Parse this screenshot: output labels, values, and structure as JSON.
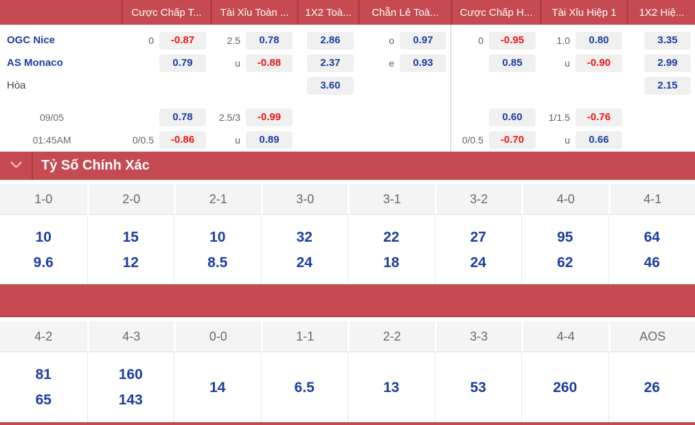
{
  "colors": {
    "accent_red": "#c54a51",
    "header_divider_red": "#b23c44",
    "odds_positive_blue": "#1c3ca0",
    "odds_negative_red": "#ed1515",
    "pill_background": "#f0f0f1",
    "score_header_background": "#f4f4f5"
  },
  "match": {
    "home": "OGC Nice",
    "away": "AS Monaco",
    "draw_label": "Hòa",
    "date": "09/05",
    "time": "01:45AM"
  },
  "odds": {
    "columns": [
      "Cược Chấp T...",
      "Tài Xỉu Toàn ...",
      "1X2 Toà...",
      "Chẵn Lẻ Toà...",
      "Cược Chấp H...",
      "Tài Xỉu Hiệp 1",
      "1X2 Hiệ..."
    ],
    "rows": [
      {
        "label": "OGC Nice",
        "type": "team",
        "cells": [
          {
            "handicap": "0",
            "value": "-0.87",
            "negative": true
          },
          {
            "handicap": "2.5",
            "value": "0.78",
            "negative": false
          },
          {
            "value": "2.86",
            "negative": false
          },
          {
            "handicap": "o",
            "value": "0.97",
            "negative": false
          },
          {
            "handicap": "0",
            "value": "-0.95",
            "negative": true
          },
          {
            "handicap": "1.0",
            "value": "0.80",
            "negative": false
          },
          {
            "value": "3.35",
            "negative": false
          }
        ]
      },
      {
        "label": "AS Monaco",
        "type": "team",
        "cells": [
          {
            "value": "0.79",
            "negative": false
          },
          {
            "handicap": "u",
            "value": "-0.88",
            "negative": true
          },
          {
            "value": "2.37",
            "negative": false
          },
          {
            "handicap": "e",
            "value": "0.93",
            "negative": false
          },
          {
            "value": "0.85",
            "negative": false
          },
          {
            "handicap": "u",
            "value": "-0.90",
            "negative": true
          },
          {
            "value": "2.99",
            "negative": false
          }
        ]
      },
      {
        "label": "Hòa",
        "type": "draw",
        "cells": [
          null,
          null,
          {
            "value": "3.60",
            "negative": false
          },
          null,
          null,
          null,
          {
            "value": "2.15",
            "negative": false
          }
        ]
      },
      {
        "label": "09/05",
        "type": "date1",
        "cells": [
          {
            "value": "0.78",
            "negative": false
          },
          {
            "handicap": "2.5/3",
            "value": "-0.99",
            "negative": true
          },
          null,
          null,
          {
            "value": "0.60",
            "negative": false
          },
          {
            "handicap": "1/1.5",
            "value": "-0.76",
            "negative": true
          },
          null
        ]
      },
      {
        "label": "01:45AM",
        "type": "date2",
        "cells": [
          {
            "handicap": "0/0.5",
            "value": "-0.86",
            "negative": true
          },
          {
            "handicap": "u",
            "value": "0.89",
            "negative": false
          },
          null,
          null,
          {
            "handicap": "0/0.5",
            "value": "-0.70",
            "negative": true
          },
          {
            "handicap": "u",
            "value": "0.66",
            "negative": false
          },
          null
        ]
      }
    ]
  },
  "correct_score": {
    "title": "Tỷ Số Chính Xác",
    "grid1": [
      {
        "score": "1-0",
        "odds": [
          "10",
          "9.6"
        ]
      },
      {
        "score": "2-0",
        "odds": [
          "15",
          "12"
        ]
      },
      {
        "score": "2-1",
        "odds": [
          "10",
          "8.5"
        ]
      },
      {
        "score": "3-0",
        "odds": [
          "32",
          "24"
        ]
      },
      {
        "score": "3-1",
        "odds": [
          "22",
          "18"
        ]
      },
      {
        "score": "3-2",
        "odds": [
          "27",
          "24"
        ]
      },
      {
        "score": "4-0",
        "odds": [
          "95",
          "62"
        ]
      },
      {
        "score": "4-1",
        "odds": [
          "64",
          "46"
        ]
      }
    ],
    "grid2": [
      {
        "score": "4-2",
        "odds": [
          "81",
          "65"
        ]
      },
      {
        "score": "4-3",
        "odds": [
          "160",
          "143"
        ]
      },
      {
        "score": "0-0",
        "odds": [
          "14"
        ]
      },
      {
        "score": "1-1",
        "odds": [
          "6.5"
        ]
      },
      {
        "score": "2-2",
        "odds": [
          "13"
        ]
      },
      {
        "score": "3-3",
        "odds": [
          "53"
        ]
      },
      {
        "score": "4-4",
        "odds": [
          "260"
        ]
      },
      {
        "score": "AOS",
        "odds": [
          "26"
        ]
      }
    ]
  }
}
